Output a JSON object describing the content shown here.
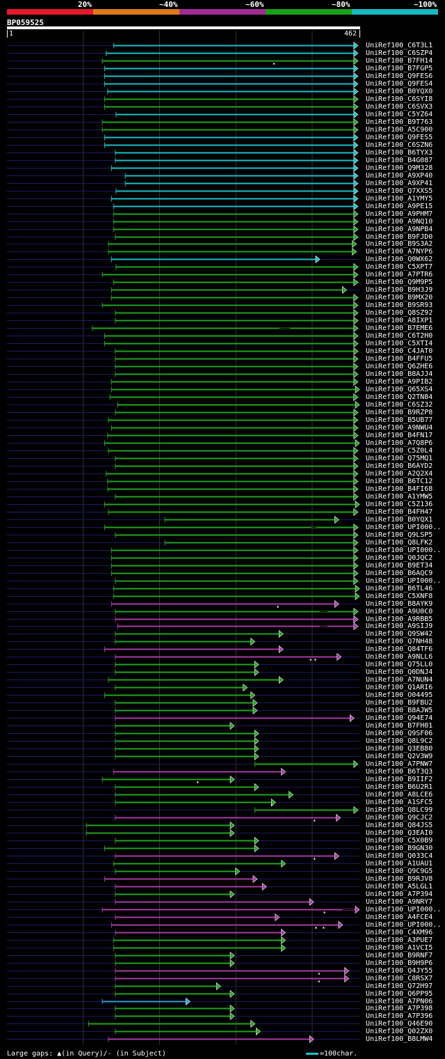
{
  "legend": {
    "segments": [
      {
        "label": "20%",
        "color": "#e8192c"
      },
      {
        "label": "~40%",
        "color": "#e07a1a"
      },
      {
        "label": "~60%",
        "color": "#a32c93"
      },
      {
        "label": "~80%",
        "color": "#1aa01a"
      },
      {
        "label": "~100%",
        "color": "#19b8c0"
      }
    ]
  },
  "query": {
    "name": "BP059525",
    "start": "1",
    "end": "462",
    "length": 462
  },
  "colors": {
    "cyan": "#19c0c8",
    "green": "#1ea51e",
    "purple": "#a63aa6",
    "blue_light": "#3399dd",
    "track": "#1a1a66",
    "grid": "#333333"
  },
  "hits": [
    {
      "id": "UniRef100_C6T3L1",
      "qs": 140,
      "qe": 460,
      "c": "cyan"
    },
    {
      "id": "UniRef100_C6SZP4",
      "qs": 130,
      "qe": 460,
      "c": "cyan"
    },
    {
      "id": "UniRef100_B7FH14",
      "qs": 125,
      "qe": 460,
      "c": "green",
      "m": [
        350
      ]
    },
    {
      "id": "UniRef100_B7FGP5",
      "qs": 128,
      "qe": 460,
      "c": "cyan"
    },
    {
      "id": "UniRef100_Q9FES6",
      "qs": 128,
      "qe": 460,
      "c": "cyan"
    },
    {
      "id": "UniRef100_Q9FES4",
      "qs": 128,
      "qe": 460,
      "c": "cyan"
    },
    {
      "id": "UniRef100_B0YQX0",
      "qs": 132,
      "qe": 460,
      "c": "cyan"
    },
    {
      "id": "UniRef100_C6SYI8",
      "qs": 128,
      "qe": 460,
      "c": "green"
    },
    {
      "id": "UniRef100_C6SVX3",
      "qs": 128,
      "qe": 460,
      "c": "green"
    },
    {
      "id": "UniRef100_C5YZ64",
      "qs": 143,
      "qe": 460,
      "c": "cyan"
    },
    {
      "id": "UniRef100_B9T763",
      "qs": 125,
      "qe": 460,
      "c": "green"
    },
    {
      "id": "UniRef100_A5C900",
      "qs": 125,
      "qe": 460,
      "c": "green"
    },
    {
      "id": "UniRef100_Q9FES5",
      "qs": 128,
      "qe": 460,
      "c": "cyan"
    },
    {
      "id": "UniRef100_C6SZN6",
      "qs": 128,
      "qe": 460,
      "c": "cyan"
    },
    {
      "id": "UniRef100_B6TYX3",
      "qs": 142,
      "qe": 460,
      "c": "cyan"
    },
    {
      "id": "UniRef100_B4G087",
      "qs": 142,
      "qe": 460,
      "c": "cyan"
    },
    {
      "id": "UniRef100_Q9M328",
      "qs": 137,
      "qe": 460,
      "c": "cyan"
    },
    {
      "id": "UniRef100_A9XP40",
      "qs": 155,
      "qe": 460,
      "c": "cyan"
    },
    {
      "id": "UniRef100_A9XP41",
      "qs": 155,
      "qe": 460,
      "c": "cyan"
    },
    {
      "id": "UniRef100_Q7XXS5",
      "qs": 143,
      "qe": 460,
      "c": "cyan"
    },
    {
      "id": "UniRef100_A1YMY5",
      "qs": 137,
      "qe": 460,
      "c": "cyan"
    },
    {
      "id": "UniRef100_A9PE15",
      "qs": 140,
      "qe": 460,
      "c": "cyan"
    },
    {
      "id": "UniRef100_A9PHM7",
      "qs": 140,
      "qe": 460,
      "c": "green"
    },
    {
      "id": "UniRef100_A9NQ10",
      "qs": 140,
      "qe": 460,
      "c": "green"
    },
    {
      "id": "UniRef100_A9NPB4",
      "qs": 140,
      "qe": 460,
      "c": "green"
    },
    {
      "id": "UniRef100_B9FJD0",
      "qs": 142,
      "qe": 460,
      "c": "green"
    },
    {
      "id": "UniRef100_B9S3A2",
      "qs": 133,
      "qe": 458,
      "c": "green"
    },
    {
      "id": "UniRef100_A7NYP6",
      "qs": 133,
      "qe": 458,
      "c": "green"
    },
    {
      "id": "UniRef100_Q0WX62",
      "qs": 137,
      "qe": 410,
      "c": "cyan"
    },
    {
      "id": "UniRef100_C5XPT7",
      "qs": 143,
      "qe": 460,
      "c": "green"
    },
    {
      "id": "UniRef100_A7PTR6",
      "qs": 125,
      "qe": 460,
      "c": "green"
    },
    {
      "id": "UniRef100_Q9M9P5",
      "qs": 140,
      "qe": 460,
      "c": "green"
    },
    {
      "id": "UniRef100_B9H3J9",
      "qs": 137,
      "qe": 445,
      "c": "green"
    },
    {
      "id": "UniRef100_B9MX20",
      "qs": 137,
      "qe": 460,
      "c": "green"
    },
    {
      "id": "UniRef100_B9SR93",
      "qs": 125,
      "qe": 460,
      "c": "green"
    },
    {
      "id": "UniRef100_Q8SZ92",
      "qs": 142,
      "qe": 460,
      "c": "green"
    },
    {
      "id": "UniRef100_A8IXP1",
      "qs": 142,
      "qe": 460,
      "c": "green"
    },
    {
      "id": "UniRef100_B7EME6",
      "qs": 112,
      "qe": 460,
      "c": "green",
      "g": [
        [
          357,
          371
        ]
      ]
    },
    {
      "id": "UniRef100_C6T2H0",
      "qs": 128,
      "qe": 460,
      "c": "green"
    },
    {
      "id": "UniRef100_C5XTI4",
      "qs": 128,
      "qe": 460,
      "c": "green"
    },
    {
      "id": "UniRef100_C4JAT0",
      "qs": 142,
      "qe": 460,
      "c": "green"
    },
    {
      "id": "UniRef100_B4FFU5",
      "qs": 142,
      "qe": 460,
      "c": "green"
    },
    {
      "id": "UniRef100_Q6ZHE6",
      "qs": 142,
      "qe": 460,
      "c": "green"
    },
    {
      "id": "UniRef100_B8AJJ4",
      "qs": 142,
      "qe": 460,
      "c": "green"
    },
    {
      "id": "UniRef100_A9PIB2",
      "qs": 137,
      "qe": 460,
      "c": "green"
    },
    {
      "id": "UniRef100_Q65XS4",
      "qs": 137,
      "qe": 462,
      "c": "green"
    },
    {
      "id": "UniRef100_Q2TN84",
      "qs": 135,
      "qe": 460,
      "c": "green"
    },
    {
      "id": "UniRef100_C6SZ32",
      "qs": 145,
      "qe": 462,
      "c": "green"
    },
    {
      "id": "UniRef100_B9RZP8",
      "qs": 142,
      "qe": 460,
      "c": "green"
    },
    {
      "id": "UniRef100_B5UB77",
      "qs": 133,
      "qe": 460,
      "c": "green"
    },
    {
      "id": "UniRef100_A9NWU4",
      "qs": 137,
      "qe": 460,
      "c": "green"
    },
    {
      "id": "UniRef100_B4FN17",
      "qs": 132,
      "qe": 460,
      "c": "green"
    },
    {
      "id": "UniRef100_A7Q8P6",
      "qs": 128,
      "qe": 462,
      "c": "green"
    },
    {
      "id": "UniRef100_C5Z0L4",
      "qs": 133,
      "qe": 460,
      "c": "green"
    },
    {
      "id": "UniRef100_Q75MQ1",
      "qs": 142,
      "qe": 460,
      "c": "green"
    },
    {
      "id": "UniRef100_B6AYD2",
      "qs": 142,
      "qe": 460,
      "c": "green"
    },
    {
      "id": "UniRef100_A2Q2X4",
      "qs": 130,
      "qe": 460,
      "c": "green"
    },
    {
      "id": "UniRef100_B6TC12",
      "qs": 132,
      "qe": 460,
      "c": "green"
    },
    {
      "id": "UniRef100_B4FI68",
      "qs": 132,
      "qe": 460,
      "c": "green"
    },
    {
      "id": "UniRef100_A1YMW5",
      "qs": 142,
      "qe": 460,
      "c": "green"
    },
    {
      "id": "UniRef100_C5Z136",
      "qs": 128,
      "qe": 462,
      "c": "green"
    },
    {
      "id": "UniRef100_B4FH47",
      "qs": 133,
      "qe": 460,
      "c": "green"
    },
    {
      "id": "UniRef100_B0YQX1",
      "qs": 207,
      "qe": 435,
      "c": "green"
    },
    {
      "id": "UniRef100_UPI000..",
      "qs": 128,
      "qe": 460,
      "c": "green",
      "g": [
        [
          399,
          405
        ]
      ]
    },
    {
      "id": "UniRef100_Q9LSP5",
      "qs": 142,
      "qe": 460,
      "c": "green"
    },
    {
      "id": "UniRef100_Q8LFK2",
      "qs": 207,
      "qe": 460,
      "c": "green"
    },
    {
      "id": "UniRef100_UPI000..",
      "qs": 137,
      "qe": 460,
      "c": "green"
    },
    {
      "id": "UniRef100_Q0JQC2",
      "qs": 137,
      "qe": 460,
      "c": "green"
    },
    {
      "id": "UniRef100_B9ET34",
      "qs": 137,
      "qe": 460,
      "c": "green"
    },
    {
      "id": "UniRef100_B6AQC9",
      "qs": 137,
      "qe": 460,
      "c": "green"
    },
    {
      "id": "UniRef100_UPI000..",
      "qs": 142,
      "qe": 460,
      "c": "green"
    },
    {
      "id": "UniRef100_B6TL46",
      "qs": 140,
      "qe": 462,
      "c": "green"
    },
    {
      "id": "UniRef100_C5XNF8",
      "qs": 140,
      "qe": 462,
      "c": "green"
    },
    {
      "id": "UniRef100_B8AYK9",
      "qs": 137,
      "qe": 435,
      "c": "purple",
      "m": [
        355
      ]
    },
    {
      "id": "UniRef100_A9U0C0",
      "qs": 142,
      "qe": 460,
      "c": "green",
      "g": [
        [
          410,
          420
        ]
      ]
    },
    {
      "id": "UniRef100_A9RBB5",
      "qs": 142,
      "qe": 460,
      "c": "purple"
    },
    {
      "id": "UniRef100_A9SIJ9",
      "qs": 145,
      "qe": 460,
      "c": "purple",
      "g": [
        [
          410,
          420
        ]
      ]
    },
    {
      "id": "UniRef100_Q9SW42",
      "qs": 142,
      "qe": 362,
      "c": "green"
    },
    {
      "id": "UniRef100_Q7NH48",
      "qs": 142,
      "qe": 325,
      "c": "green"
    },
    {
      "id": "UniRef100_Q84TF6",
      "qs": 128,
      "qe": 362,
      "c": "purple"
    },
    {
      "id": "UniRef100_A9NLL6",
      "qs": 142,
      "qe": 438,
      "c": "purple",
      "m": [
        398,
        404
      ]
    },
    {
      "id": "UniRef100_Q75LL0",
      "qs": 142,
      "qe": 330,
      "c": "green"
    },
    {
      "id": "UniRef100_Q0DNJ4",
      "qs": 142,
      "qe": 330,
      "c": "green"
    },
    {
      "id": "UniRef100_A7NUN4",
      "qs": 133,
      "qe": 362,
      "c": "green"
    },
    {
      "id": "UniRef100_Q1ARI6",
      "qs": 142,
      "qe": 315,
      "c": "green"
    },
    {
      "id": "UniRef100_O04495",
      "qs": 128,
      "qe": 325,
      "c": "green"
    },
    {
      "id": "UniRef100_B9FBU2",
      "qs": 142,
      "qe": 328,
      "c": "green"
    },
    {
      "id": "UniRef100_B8AJW5",
      "qs": 142,
      "qe": 328,
      "c": "green"
    },
    {
      "id": "UniRef100_Q94E74",
      "qs": 142,
      "qe": 455,
      "c": "purple"
    },
    {
      "id": "UniRef100_B7FH01",
      "qs": 142,
      "qe": 298,
      "c": "green"
    },
    {
      "id": "UniRef100_Q9SF06",
      "qs": 142,
      "qe": 330,
      "c": "green"
    },
    {
      "id": "UniRef100_Q8L9C2",
      "qs": 142,
      "qe": 330,
      "c": "green"
    },
    {
      "id": "UniRef100_Q3EB80",
      "qs": 142,
      "qe": 330,
      "c": "green"
    },
    {
      "id": "UniRef100_Q2V3W9",
      "qs": 142,
      "qe": 330,
      "c": "green"
    },
    {
      "id": "UniRef100_A7PNW7",
      "qs": 325,
      "qe": 460,
      "c": "green"
    },
    {
      "id": "UniRef100_B6T3Q3",
      "qs": 140,
      "qe": 365,
      "c": "purple"
    },
    {
      "id": "UniRef100_B9IIF2",
      "qs": 125,
      "qe": 298,
      "c": "green",
      "m": [
        250
      ]
    },
    {
      "id": "UniRef100_B6U2R1",
      "qs": 142,
      "qe": 330,
      "c": "green"
    },
    {
      "id": "UniRef100_A8LCE6",
      "qs": 142,
      "qe": 375,
      "c": "green"
    },
    {
      "id": "UniRef100_A1SFC5",
      "qs": 142,
      "qe": 352,
      "c": "green",
      "m": [
        347
      ]
    },
    {
      "id": "UniRef100_Q8LC99",
      "qs": 325,
      "qe": 460,
      "c": "green"
    },
    {
      "id": "UniRef100_Q9CJC2",
      "qs": 142,
      "qe": 437,
      "c": "purple",
      "m": [
        403
      ]
    },
    {
      "id": "UniRef100_Q84JS5",
      "qs": 104,
      "qe": 298,
      "c": "green"
    },
    {
      "id": "UniRef100_Q3EAI0",
      "qs": 104,
      "qe": 298,
      "c": "green"
    },
    {
      "id": "UniRef100_C5X0B9",
      "qs": 142,
      "qe": 330,
      "c": "green"
    },
    {
      "id": "UniRef100_B9GN30",
      "qs": 128,
      "qe": 330,
      "c": "green"
    },
    {
      "id": "UniRef100_Q033C4",
      "qs": 142,
      "qe": 435,
      "c": "purple",
      "m": [
        403
      ]
    },
    {
      "id": "UniRef100_A1UAU1",
      "qs": 140,
      "qe": 365,
      "c": "green"
    },
    {
      "id": "UniRef100_Q9C9G5",
      "qs": 142,
      "qe": 305,
      "c": "green"
    },
    {
      "id": "UniRef100_B9RJV8",
      "qs": 128,
      "qe": 328,
      "c": "purple"
    },
    {
      "id": "UniRef100_A5LGL1",
      "qs": 142,
      "qe": 340,
      "c": "purple"
    },
    {
      "id": "UniRef100_A7P394",
      "qs": 142,
      "qe": 298,
      "c": "green"
    },
    {
      "id": "UniRef100_A9NRY7",
      "qs": 142,
      "qe": 402,
      "c": "purple"
    },
    {
      "id": "UniRef100_UPI000..",
      "qs": 125,
      "qe": 462,
      "c": "purple",
      "m": [
        416
      ],
      "g": [
        [
          440,
          455
        ]
      ]
    },
    {
      "id": "UniRef100_A4FCE4",
      "qs": 142,
      "qe": 357,
      "c": "purple"
    },
    {
      "id": "UniRef100_UPI000..",
      "qs": 137,
      "qe": 440,
      "c": "purple",
      "m": [
        405,
        415
      ]
    },
    {
      "id": "UniRef100_C4XM96",
      "qs": 142,
      "qe": 365,
      "c": "purple"
    },
    {
      "id": "UniRef100_A3PUE7",
      "qs": 140,
      "qe": 365,
      "c": "green"
    },
    {
      "id": "UniRef100_A1VCI5",
      "qs": 140,
      "qe": 365,
      "c": "green"
    },
    {
      "id": "UniRef100_B9RNF7",
      "qs": 142,
      "qe": 298,
      "c": "green"
    },
    {
      "id": "UniRef100_B9H9P6",
      "qs": 142,
      "qe": 298,
      "c": "green"
    },
    {
      "id": "UniRef100_Q4JY55",
      "qs": 142,
      "qe": 448,
      "c": "purple",
      "m": [
        409
      ]
    },
    {
      "id": "UniRef100_C8RSX7",
      "qs": 142,
      "qe": 448,
      "c": "purple",
      "m": [
        409
      ]
    },
    {
      "id": "UniRef100_Q72H97",
      "qs": 142,
      "qe": 280,
      "c": "green"
    },
    {
      "id": "UniRef100_Q6PP95",
      "qs": 142,
      "qe": 298,
      "c": "green"
    },
    {
      "id": "UniRef100_A7PN06",
      "qs": 125,
      "qe": 240,
      "c": "blue_light"
    },
    {
      "id": "UniRef100_A7P398",
      "qs": 142,
      "qe": 298,
      "c": "green"
    },
    {
      "id": "UniRef100_A7P396",
      "qs": 142,
      "qe": 298,
      "c": "green"
    },
    {
      "id": "UniRef100_Q46E90",
      "qs": 107,
      "qe": 325,
      "c": "green"
    },
    {
      "id": "UniRef100_Q02ZX0",
      "qs": 142,
      "qe": 332,
      "c": "green"
    },
    {
      "id": "UniRef100_B8LMW4",
      "qs": 133,
      "qe": 402,
      "c": "purple"
    }
  ],
  "footer": {
    "large_gaps": "Large gaps:",
    "in_query": "(in Query)/",
    "in_subject": "(in Subject)",
    "scale_label": "=100char."
  }
}
